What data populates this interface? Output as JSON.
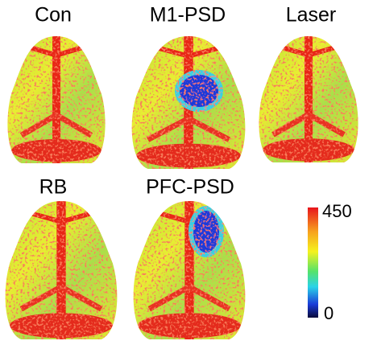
{
  "panels": [
    {
      "label": "Con"
    },
    {
      "label": "M1-PSD"
    },
    {
      "label": "Laser"
    },
    {
      "label": "RB"
    },
    {
      "label": "PFC-PSD"
    }
  ],
  "colorbar": {
    "max": "450",
    "min": "0"
  }
}
